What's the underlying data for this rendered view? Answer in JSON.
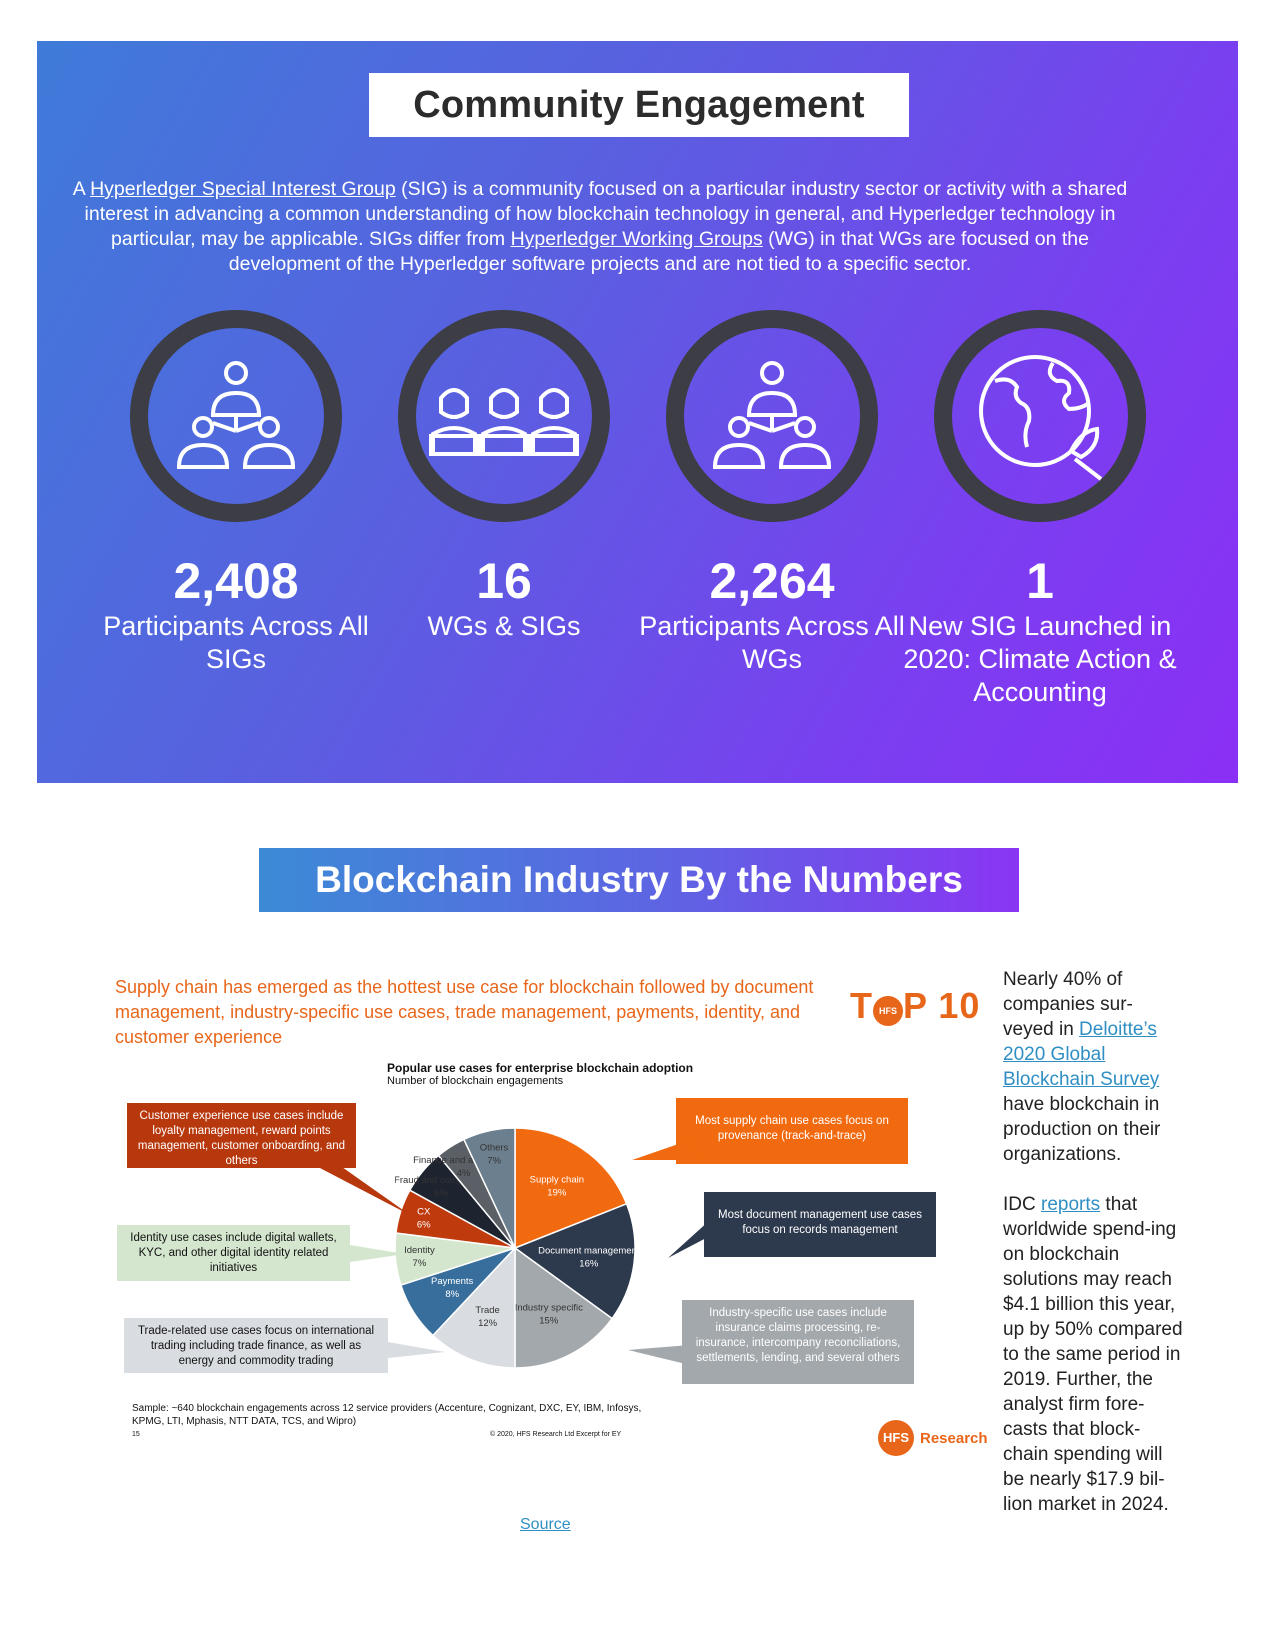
{
  "community": {
    "title": "Community Engagement",
    "intro": {
      "p1": "A ",
      "link1": "Hyperledger Special Interest Group",
      "p2": " (SIG) is a community focused on a particular industry sector or activity with a shared interest in advancing a common understanding of how blockchain technology in general, and Hyperledger technology in particular, may be applicable. SIGs differ from ",
      "link2": "Hyperledger Working Groups",
      "p3": " (WG) in that WGs are focused on the development of the Hyperledger software projects and are not tied to a specific sector."
    },
    "stats": [
      {
        "icon": "network-people-icon",
        "value": "2,408",
        "label": "Participants Across All SIGs"
      },
      {
        "icon": "workers-group-icon",
        "value": "16",
        "label": "WGs & SIGs"
      },
      {
        "icon": "network-people-icon",
        "value": "2,264",
        "label": "Participants Across All WGs"
      },
      {
        "icon": "globe-leaf-icon",
        "value": "1",
        "label": "New SIG Launched in 2020: Climate Action & Accounting"
      }
    ]
  },
  "numbers": {
    "title": "Blockchain Industry By the Numbers",
    "headline": "Supply chain has emerged as the hottest use case for blockchain followed by document management, industry-specific use cases, trade management, payments, identity, and customer experience",
    "badge_pre": "T",
    "badge_o": "HFS",
    "badge_post": "P 10",
    "chart_title": "Popular use cases for enterprise blockchain adoption",
    "chart_subtitle": "Number of blockchain engagements",
    "callouts": {
      "customer": "Customer experience use cases include loyalty management, reward points management, customer onboarding, and others",
      "identity": "Identity use cases include digital wallets, KYC, and other digital identity related initiatives",
      "trade": "Trade-related use cases focus on international trading including trade finance, as well as energy and commodity trading",
      "supply": "Most supply chain use cases focus on provenance (track-and-trace)",
      "document": "Most document management use cases focus on records management",
      "industry": "Industry-specific use cases include insurance claims processing, re-insurance, intercompany reconciliations, settlements, lending, and several others"
    },
    "sample": "Sample: ~640 blockchain engagements across 12 service providers (Accenture, Cognizant, DXC, EY, IBM, Infosys, KPMG, LTI, Mphasis, NTT DATA, TCS, and Wipro)",
    "page_no": "15",
    "copyright": "© 2020, HFS Research Ltd Excerpt for EY",
    "hfs_logo": "HFS",
    "hfs_text": "Research",
    "source": "Source"
  },
  "sidebar": {
    "p1a": "Nearly 40% of companies sur-veyed in ",
    "p1link": "Deloitte’s 2020 Global Blockchain Survey",
    "p1b": " have blockchain in production on their organizations.",
    "p2a": "IDC ",
    "p2link": "reports",
    "p2b": " that worldwide spend-ing on blockchain solutions may reach $4.1 billion this year, up by 50% compared to the same period in 2019. Further, the analyst firm fore-casts that block-chain spending will be nearly $17.9 bil-lion market in 2024."
  },
  "chart_data": {
    "type": "pie",
    "title": "Popular use cases for enterprise blockchain adoption",
    "subtitle": "Number of blockchain engagements",
    "slices": [
      {
        "label": "Supply chain",
        "value": 19,
        "color": "#f26a0f"
      },
      {
        "label": "Document management",
        "value": 16,
        "color": "#2d394d"
      },
      {
        "label": "Industry specific",
        "value": 15,
        "color": "#a3a8ac"
      },
      {
        "label": "Trade",
        "value": 12,
        "color": "#d9dde1"
      },
      {
        "label": "Payments",
        "value": 8,
        "color": "#376e9c"
      },
      {
        "label": "Identity",
        "value": 7,
        "color": "#d5e6cf"
      },
      {
        "label": "CX",
        "value": 6,
        "color": "#bf3b0d"
      },
      {
        "label": "Fraud and compliance",
        "value": 6,
        "color": "#1e2330"
      },
      {
        "label": "Finance and accounting",
        "value": 4,
        "color": "#5a6066"
      },
      {
        "label": "Others",
        "value": 7,
        "color": "#6c7f8e"
      }
    ],
    "unit": "%"
  }
}
